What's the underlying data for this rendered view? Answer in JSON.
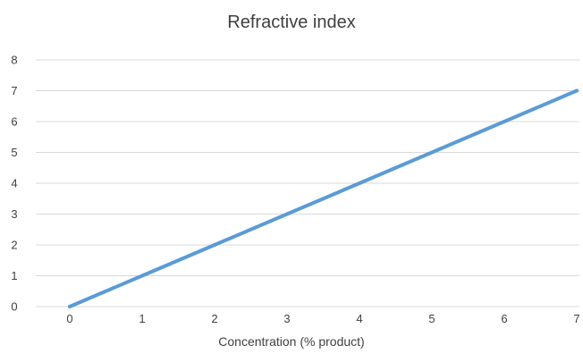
{
  "chart_data": {
    "type": "line",
    "title": "Refractive index",
    "xlabel": "Concentration (% product)",
    "ylabel": "",
    "x": [
      0,
      1,
      2,
      3,
      4,
      5,
      6,
      7
    ],
    "series": [
      {
        "values": [
          0,
          1,
          2,
          3,
          4,
          5,
          6,
          7
        ],
        "color": "#5B9BD5"
      }
    ],
    "x_ticks": [
      "0",
      "1",
      "2",
      "3",
      "4",
      "5",
      "6",
      "7"
    ],
    "y_ticks": [
      "0",
      "1",
      "2",
      "3",
      "4",
      "5",
      "6",
      "7",
      "8"
    ],
    "xlim": [
      0,
      7
    ],
    "ylim": [
      0,
      8
    ],
    "grid": true,
    "gridline_color": "#d9d9d9"
  }
}
